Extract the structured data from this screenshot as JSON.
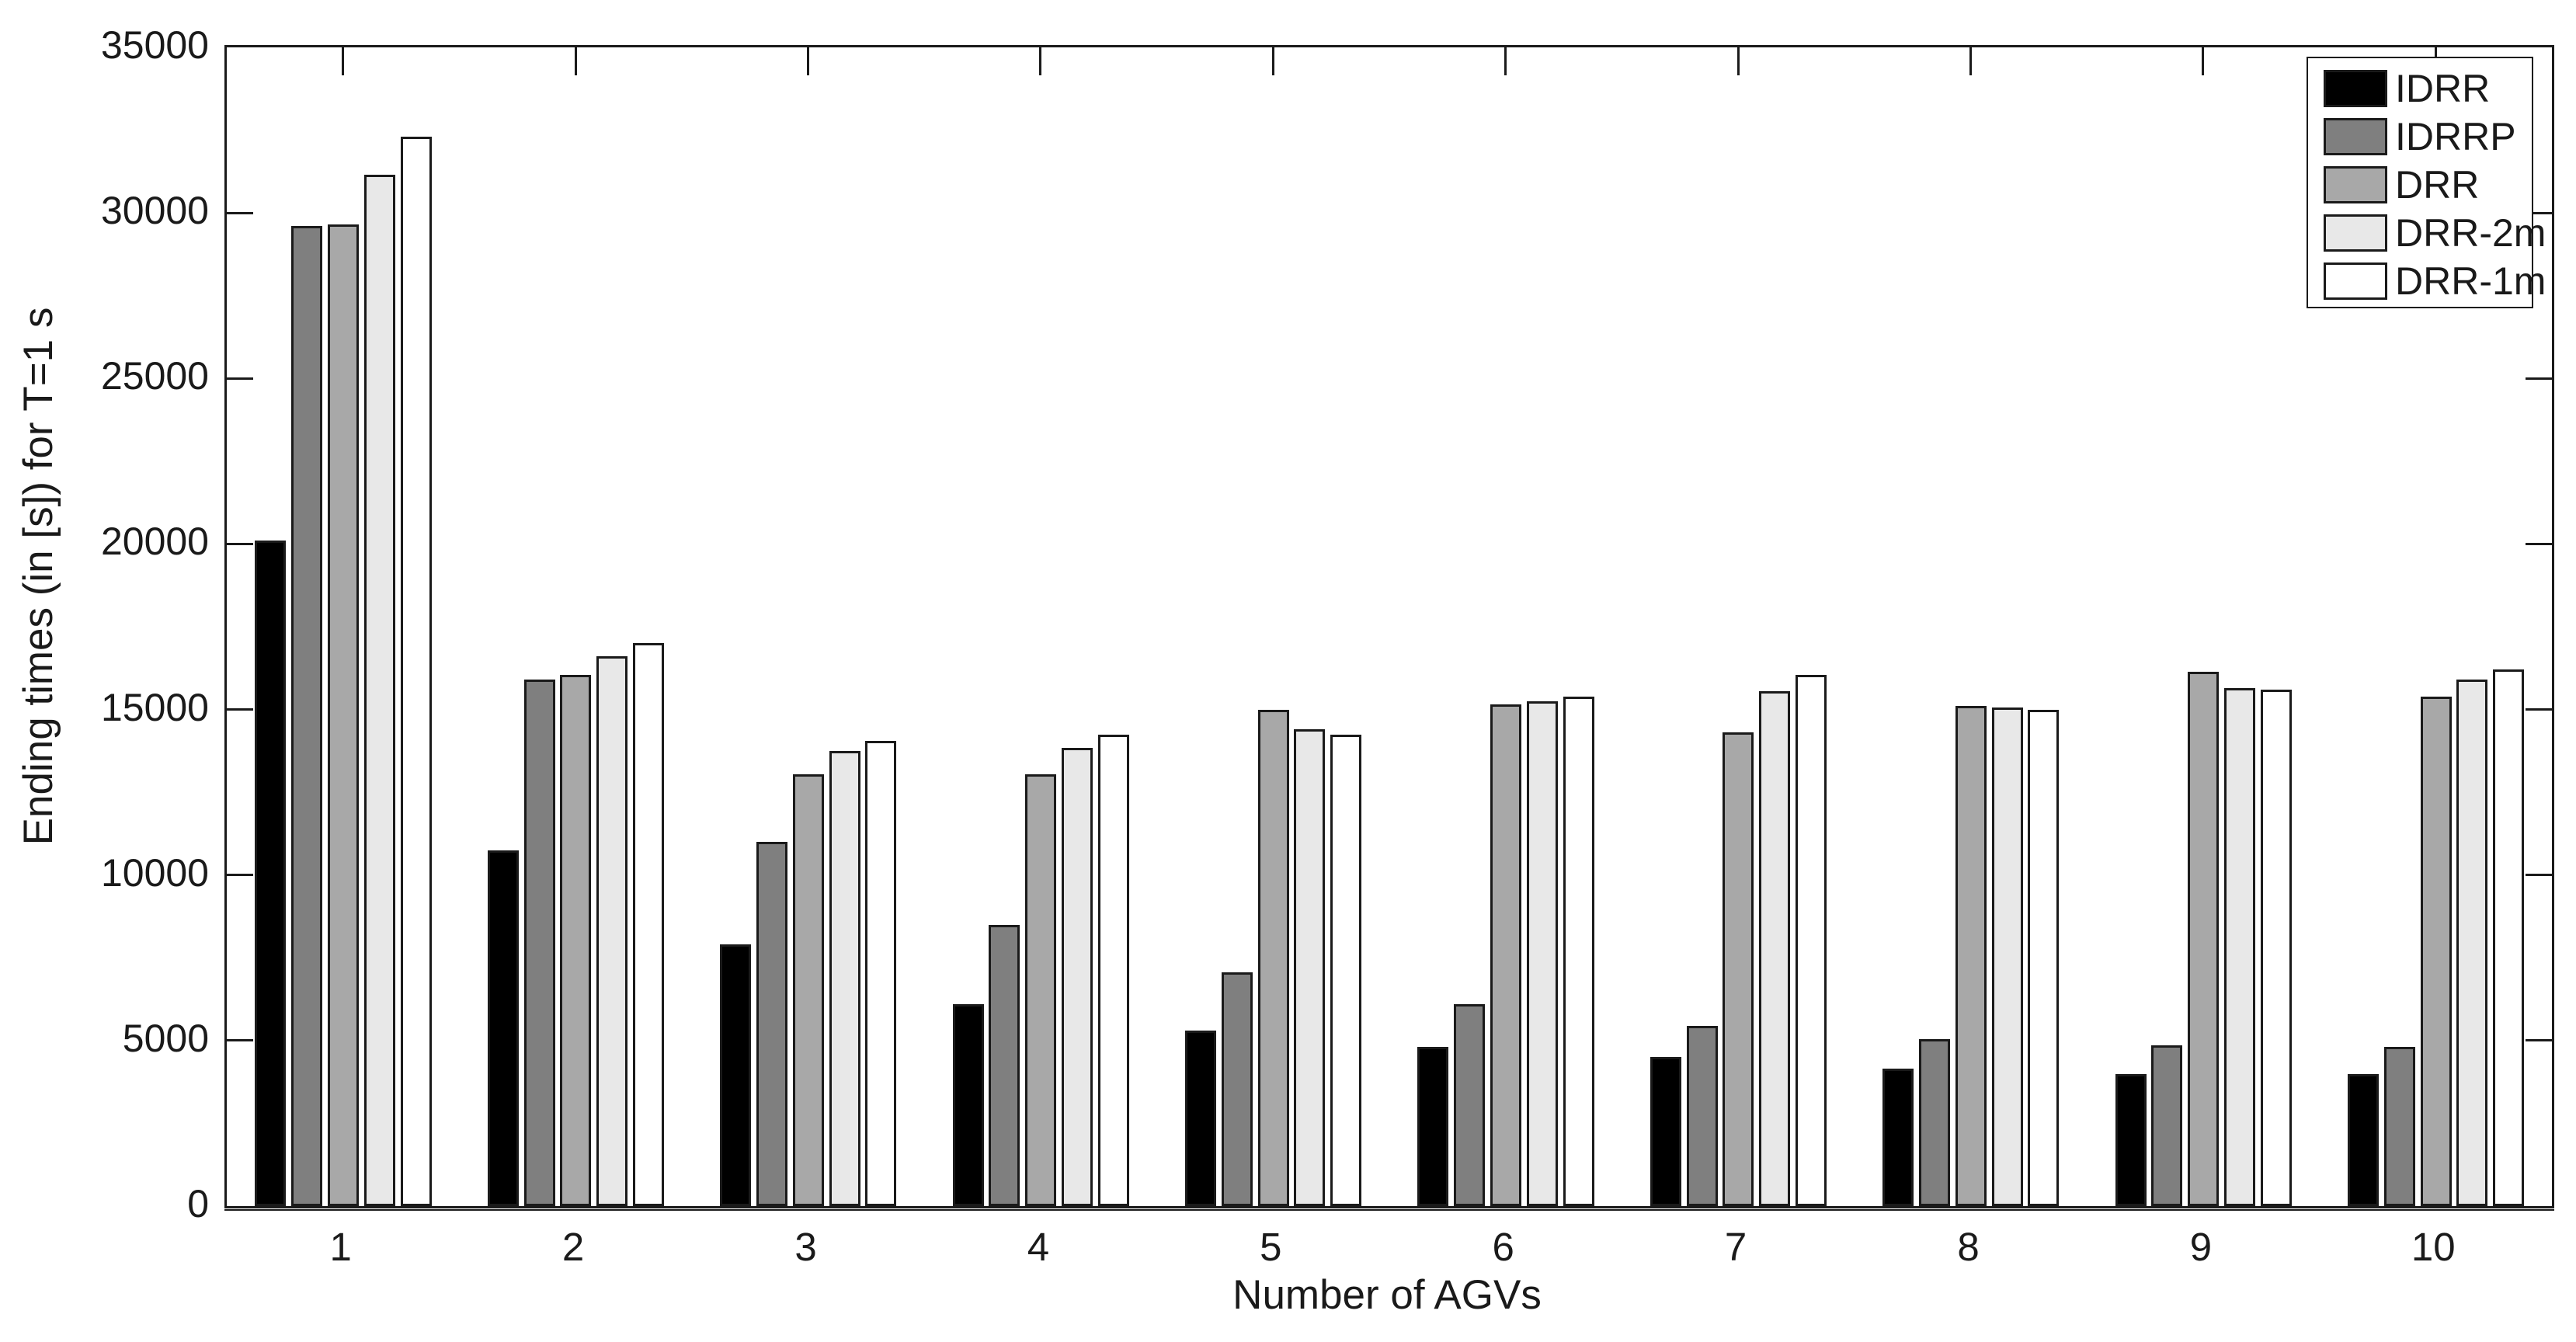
{
  "figure": {
    "background": "#ffffff",
    "axis_color": "#1a1a1a"
  },
  "chart_data": {
    "type": "bar",
    "title": "",
    "xlabel": "Number of AGVs",
    "ylabel": "Ending times (in [s]) for T=1 s",
    "categories": [
      "1",
      "2",
      "3",
      "4",
      "5",
      "6",
      "7",
      "8",
      "9",
      "10"
    ],
    "series": [
      {
        "name": "IDRR",
        "color": "#000000",
        "values": [
          20100,
          10750,
          7900,
          6100,
          5300,
          4800,
          4500,
          4150,
          4000,
          4000
        ]
      },
      {
        "name": "IDRRP",
        "color": "#7f7f7f",
        "values": [
          29600,
          15900,
          11000,
          8500,
          7050,
          6100,
          5450,
          5050,
          4850,
          4800
        ]
      },
      {
        "name": "DRR",
        "color": "#a8a8a8",
        "values": [
          29650,
          16050,
          13050,
          13050,
          15000,
          15150,
          14300,
          15100,
          16150,
          15400
        ]
      },
      {
        "name": "DRR-2m",
        "color": "#e8e8e8",
        "values": [
          31150,
          16600,
          13750,
          13850,
          14400,
          15250,
          15550,
          15050,
          15650,
          15900
        ]
      },
      {
        "name": "DRR-1m",
        "color": "#ffffff",
        "values": [
          32300,
          17000,
          14050,
          14250,
          14250,
          15400,
          16050,
          15000,
          15600,
          16200
        ]
      }
    ],
    "ylim": [
      0,
      35000
    ],
    "yticks": [
      0,
      5000,
      10000,
      15000,
      20000,
      25000,
      30000,
      35000
    ],
    "grid": false,
    "bar_edge_color": "#1a1a1a",
    "legend": {
      "position": "top-right",
      "entries": [
        "IDRR",
        "IDRRP",
        "DRR",
        "DRR-2m",
        "DRR-1m"
      ]
    }
  }
}
